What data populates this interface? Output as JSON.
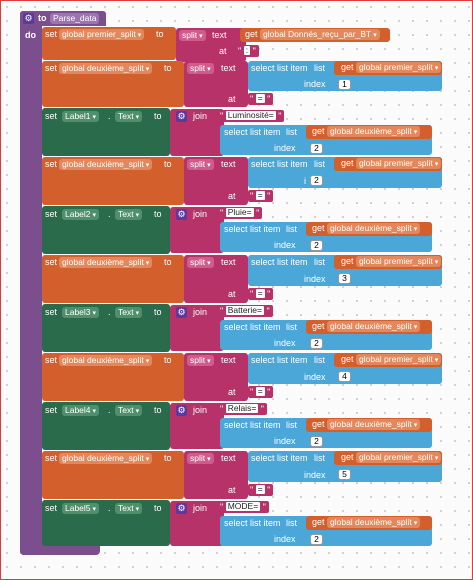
{
  "procedure": {
    "to": "to",
    "name": "Parse_data",
    "do": "do"
  },
  "words": {
    "set": "set",
    "to": "to",
    "split": "split",
    "text": "text",
    "at": "at",
    "get": "get",
    "join": "join",
    "select_list_item": "select list item",
    "list": "list",
    "index": "index",
    "dot": "."
  },
  "vars": {
    "premier": "global premier_split",
    "deuxieme": "global deuxième_split",
    "recu": "global Donnés_reçu_par_BT"
  },
  "separators": {
    "colon": ":",
    "equals": "="
  },
  "text_prop": "Text",
  "labels": [
    {
      "label": "Label1",
      "text": "Luminosité="
    },
    {
      "label": "Label2",
      "text": "Pluie="
    },
    {
      "label": "Label3",
      "text": "Batterie="
    },
    {
      "label": "Label4",
      "text": "Relais="
    },
    {
      "label": "Label5",
      "text": "MODE="
    }
  ],
  "indices": {
    "two": "2",
    "one": "1",
    "three": "3",
    "four": "4",
    "five": "5"
  },
  "dropdown": "▾"
}
